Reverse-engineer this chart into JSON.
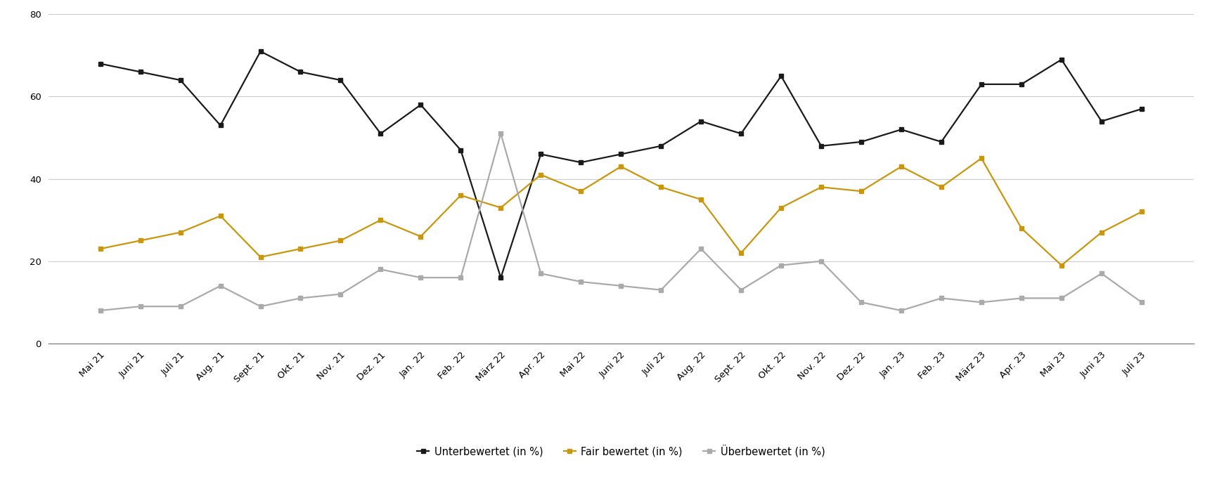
{
  "labels": [
    "Mai 21",
    "Juni 21",
    "Juli 21",
    "Aug. 21",
    "Sept. 21",
    "Okt. 21",
    "Nov. 21",
    "Dez. 21",
    "Jan. 22",
    "Feb. 22",
    "März 22",
    "Apr. 22",
    "Mai 22",
    "Juni 22",
    "Juli 22",
    "Aug. 22",
    "Sept. 22",
    "Okt. 22",
    "Nov. 22",
    "Dez. 22",
    "Jan. 23",
    "Feb. 23",
    "März 23",
    "Apr. 23",
    "Mai 23",
    "Juni 23",
    "Juli 23"
  ],
  "unterbewertet": [
    68,
    66,
    64,
    53,
    71,
    66,
    64,
    51,
    58,
    47,
    16,
    46,
    44,
    46,
    48,
    54,
    51,
    65,
    48,
    49,
    52,
    49,
    63,
    63,
    69,
    54,
    57
  ],
  "fair_bewertet": [
    23,
    25,
    27,
    31,
    21,
    23,
    25,
    30,
    26,
    36,
    33,
    41,
    37,
    43,
    38,
    35,
    22,
    33,
    38,
    37,
    43,
    38,
    45,
    28,
    19,
    27,
    32
  ],
  "ueberbewertet": [
    8,
    9,
    9,
    14,
    9,
    11,
    12,
    18,
    16,
    16,
    51,
    17,
    15,
    14,
    13,
    23,
    13,
    19,
    20,
    10,
    8,
    11,
    10,
    11,
    11,
    17,
    10
  ],
  "line_color_black": "#1a1a1a",
  "line_color_gold": "#c9960c",
  "line_color_gray": "#aaaaaa",
  "bg_color": "#ffffff",
  "grid_color": "#cccccc",
  "ylim_min": 0,
  "ylim_max": 80,
  "yticks": [
    0,
    20,
    40,
    60,
    80
  ],
  "legend_labels": [
    "Unterbewertet (in %)",
    "Fair bewertet (in %)",
    "Überbewertet (in %)"
  ],
  "marker": "s",
  "markersize": 4.5,
  "linewidth": 1.6
}
